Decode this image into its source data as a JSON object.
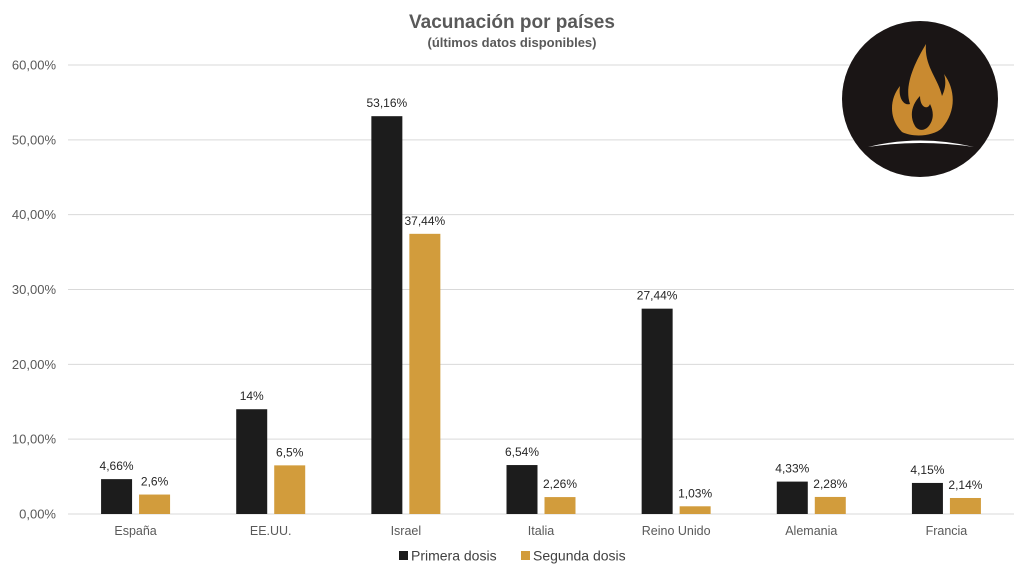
{
  "chart_data": {
    "type": "bar",
    "title": "Vacunación por países",
    "subtitle": "(últimos datos disponibles)",
    "categories": [
      "España",
      "EE.UU.",
      "Israel",
      "Italia",
      "Reino Unido",
      "Alemania",
      "Francia"
    ],
    "series": [
      {
        "name": "Primera dosis",
        "color": "#1c1c1c",
        "values": [
          4.66,
          14,
          53.16,
          6.54,
          27.44,
          4.33,
          4.15
        ],
        "labels": [
          "4,66%",
          "14%",
          "53,16%",
          "6,54%",
          "27,44%",
          "4,33%",
          "4,15%"
        ]
      },
      {
        "name": "Segunda dosis",
        "color": "#d29c3c",
        "values": [
          2.6,
          6.5,
          37.44,
          2.26,
          1.03,
          2.28,
          2.14
        ],
        "labels": [
          "2,6%",
          "6,5%",
          "37,44%",
          "2,26%",
          "1,03%",
          "2,28%",
          "2,14%"
        ]
      }
    ],
    "yticks": [
      "0,00%",
      "10,00%",
      "20,00%",
      "30,00%",
      "40,00%",
      "50,00%",
      "60,00%"
    ],
    "ylim": [
      0,
      60
    ],
    "grid": true,
    "legend_position": "bottom"
  },
  "logo": {
    "name": "flame-logo",
    "background": "#1a1515",
    "flame_color": "#c98a30"
  }
}
